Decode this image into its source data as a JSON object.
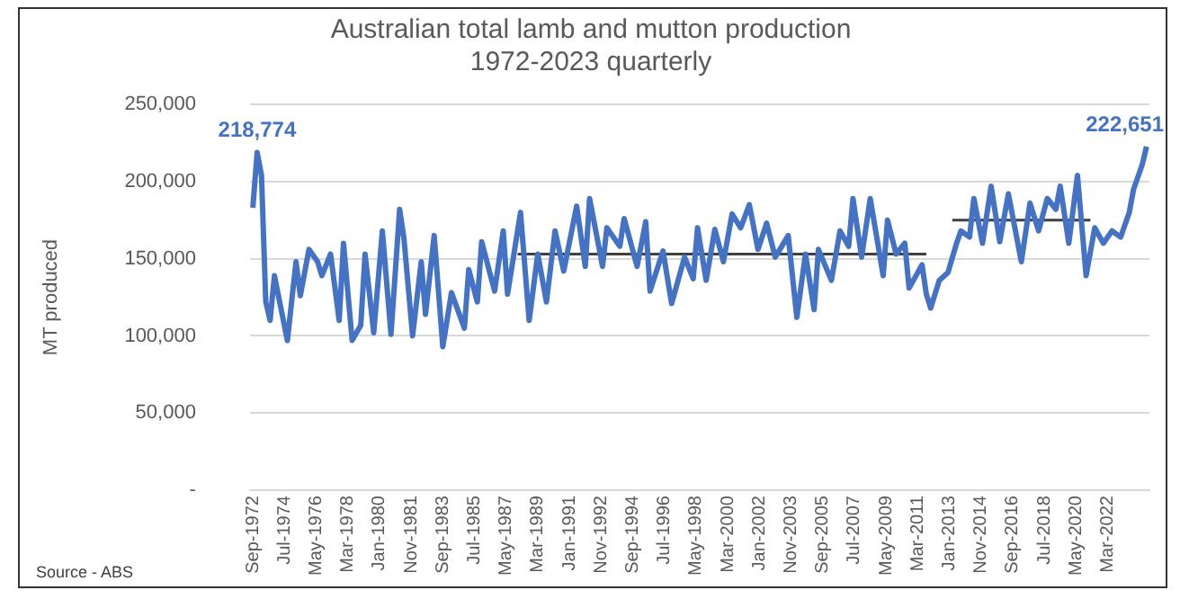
{
  "chart_data": {
    "type": "line",
    "title": "Australian total lamb and mutton production\n1972-2023 quarterly",
    "ylabel": "MT produced",
    "annotations": [
      "Source - ABS"
    ],
    "ylim": [
      0,
      250000
    ],
    "yticks": [
      {
        "value": 0,
        "label": "-"
      },
      {
        "value": 50000,
        "label": "50,000"
      },
      {
        "value": 100000,
        "label": "100,000"
      },
      {
        "value": 150000,
        "label": "150,000"
      },
      {
        "value": 200000,
        "label": "200,000"
      },
      {
        "value": 250000,
        "label": "250,000"
      }
    ],
    "xlim": [
      "1972-07",
      "2024-08"
    ],
    "xticks": [
      {
        "value": "1972-09",
        "label": "Sep-1972"
      },
      {
        "value": "1974-07",
        "label": "Jul-1974"
      },
      {
        "value": "1976-05",
        "label": "May-1976"
      },
      {
        "value": "1978-03",
        "label": "Mar-1978"
      },
      {
        "value": "1980-01",
        "label": "Jan-1980"
      },
      {
        "value": "1981-11",
        "label": "Nov-1981"
      },
      {
        "value": "1983-09",
        "label": "Sep-1983"
      },
      {
        "value": "1985-07",
        "label": "Jul-1985"
      },
      {
        "value": "1987-05",
        "label": "May-1987"
      },
      {
        "value": "1989-03",
        "label": "Mar-1989"
      },
      {
        "value": "1991-01",
        "label": "Jan-1991"
      },
      {
        "value": "1992-11",
        "label": "Nov-1992"
      },
      {
        "value": "1994-09",
        "label": "Sep-1994"
      },
      {
        "value": "1996-07",
        "label": "Jul-1996"
      },
      {
        "value": "1998-05",
        "label": "May-1998"
      },
      {
        "value": "2000-03",
        "label": "Mar-2000"
      },
      {
        "value": "2002-01",
        "label": "Jan-2002"
      },
      {
        "value": "2003-11",
        "label": "Nov-2003"
      },
      {
        "value": "2005-09",
        "label": "Sep-2005"
      },
      {
        "value": "2007-07",
        "label": "Jul-2007"
      },
      {
        "value": "2009-05",
        "label": "May-2009"
      },
      {
        "value": "2011-03",
        "label": "Mar-2011"
      },
      {
        "value": "2013-01",
        "label": "Jan-2013"
      },
      {
        "value": "2014-11",
        "label": "Nov-2014"
      },
      {
        "value": "2016-09",
        "label": "Sep-2016"
      },
      {
        "value": "2018-07",
        "label": "Jul-2018"
      },
      {
        "value": "2020-05",
        "label": "May-2020"
      },
      {
        "value": "2022-03",
        "label": "Mar-2022"
      }
    ],
    "grid": "y",
    "legend": false,
    "marker": "none",
    "line_style": "solid",
    "series": [
      {
        "color": "#4472c4",
        "x": [
          "1972-09",
          "1972-12",
          "1973-03",
          "1973-06",
          "1973-09",
          "1973-12",
          "1974-09",
          "1975-03",
          "1975-06",
          "1975-12",
          "1976-06",
          "1976-09",
          "1977-03",
          "1977-09",
          "1977-12",
          "1978-06",
          "1978-12",
          "1979-03",
          "1979-09",
          "1980-03",
          "1980-09",
          "1981-03",
          "1981-06",
          "1981-12",
          "1982-06",
          "1982-09",
          "1983-03",
          "1983-09",
          "1984-03",
          "1984-12",
          "1985-03",
          "1985-09",
          "1985-12",
          "1986-09",
          "1987-03",
          "1987-06",
          "1988-03",
          "1988-09",
          "1989-03",
          "1989-09",
          "1990-03",
          "1990-09",
          "1991-06",
          "1991-12",
          "1992-03",
          "1992-12",
          "1993-03",
          "1993-12",
          "1994-03",
          "1994-12",
          "1995-06",
          "1995-09",
          "1996-06",
          "1996-12",
          "1997-09",
          "1998-03",
          "1998-06",
          "1998-12",
          "1999-06",
          "1999-12",
          "2000-06",
          "2000-12",
          "2001-06",
          "2001-12",
          "2002-06",
          "2002-12",
          "2003-09",
          "2004-03",
          "2004-09",
          "2005-03",
          "2005-06",
          "2006-03",
          "2006-09",
          "2007-03",
          "2007-06",
          "2007-12",
          "2008-06",
          "2009-03",
          "2009-06",
          "2009-12",
          "2010-06",
          "2010-09",
          "2011-06",
          "2011-09",
          "2011-12",
          "2012-06",
          "2012-12",
          "2013-06",
          "2013-09",
          "2014-03",
          "2014-06",
          "2014-12",
          "2015-06",
          "2015-12",
          "2016-06",
          "2017-03",
          "2017-09",
          "2018-03",
          "2018-09",
          "2019-03",
          "2019-06",
          "2019-12",
          "2020-06",
          "2020-12",
          "2021-06",
          "2021-12",
          "2022-06",
          "2022-12",
          "2023-06",
          "2023-09",
          "2024-03",
          "2024-06"
        ],
        "values": [
          183000,
          218774,
          204000,
          122000,
          110000,
          139000,
          97000,
          148000,
          126000,
          156000,
          148000,
          139000,
          153000,
          110000,
          160000,
          97000,
          107000,
          153000,
          102000,
          168000,
          101000,
          182000,
          163000,
          100000,
          148000,
          114000,
          165000,
          93000,
          128000,
          105000,
          143000,
          122000,
          161000,
          129000,
          168000,
          127000,
          180000,
          110000,
          153000,
          122000,
          168000,
          142000,
          184000,
          145000,
          189000,
          145000,
          170000,
          158000,
          176000,
          145000,
          174000,
          129000,
          155000,
          121000,
          151000,
          137000,
          170000,
          136000,
          169000,
          148000,
          179000,
          170000,
          185000,
          156000,
          173000,
          151000,
          165000,
          112000,
          153000,
          117000,
          156000,
          136000,
          168000,
          158000,
          189000,
          151000,
          189000,
          139000,
          175000,
          153000,
          160000,
          131000,
          146000,
          127000,
          118000,
          136000,
          141000,
          160000,
          168000,
          164000,
          189000,
          160000,
          197000,
          161000,
          192000,
          148000,
          186000,
          168000,
          189000,
          182000,
          197000,
          160000,
          204000,
          139000,
          170000,
          160000,
          168000,
          164000,
          180000,
          195000,
          211000,
          222651
        ],
        "value_labels": [
          null,
          "218,774",
          null,
          null,
          null,
          null,
          null,
          null,
          null,
          null,
          null,
          null,
          null,
          null,
          null,
          null,
          null,
          null,
          null,
          null,
          null,
          null,
          null,
          null,
          null,
          null,
          null,
          null,
          null,
          null,
          null,
          null,
          null,
          null,
          null,
          null,
          null,
          null,
          null,
          null,
          null,
          null,
          null,
          null,
          null,
          null,
          null,
          null,
          null,
          null,
          null,
          null,
          null,
          null,
          null,
          null,
          null,
          null,
          null,
          null,
          null,
          null,
          null,
          null,
          null,
          null,
          null,
          null,
          null,
          null,
          null,
          null,
          null,
          null,
          null,
          null,
          null,
          null,
          null,
          null,
          null,
          null,
          null,
          null,
          null,
          null,
          null,
          null,
          null,
          null,
          null,
          null,
          null,
          null,
          null,
          null,
          null,
          null,
          null,
          null,
          null,
          null,
          null,
          null,
          null,
          null,
          null,
          null,
          null,
          null,
          null,
          "222,651"
        ]
      },
      {
        "color": "#404040",
        "x": [
          "1988-01",
          "2011-09"
        ],
        "values": [
          153000,
          153000
        ]
      },
      {
        "color": "#404040",
        "x": [
          "2013-03",
          "2021-03"
        ],
        "values": [
          175000,
          175000
        ]
      }
    ]
  }
}
